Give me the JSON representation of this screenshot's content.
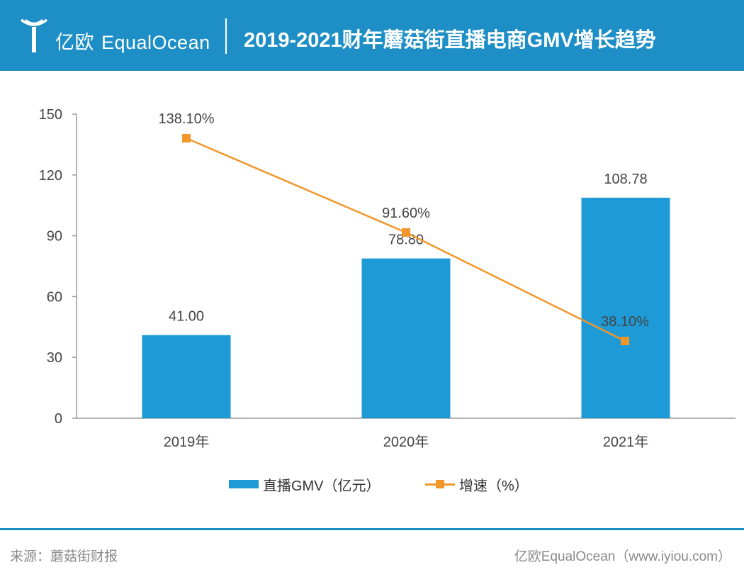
{
  "header": {
    "logo_cn": "亿欧",
    "logo_en": "EqualOcean",
    "title": "2019-2021财年蘑菇街直播电商GMV增长趋势"
  },
  "colors": {
    "header": "#1e8fc6",
    "bar": "#1e9bd7",
    "line": "#f0962a"
  },
  "chart_data": {
    "type": "bar+line",
    "categories": [
      "2019年",
      "2020年",
      "2021年"
    ],
    "series": [
      {
        "name": "直播GMV（亿元）",
        "type": "bar",
        "values": [
          41.0,
          78.8,
          108.78
        ],
        "labels": [
          "41.00",
          "78.80",
          "108.78"
        ]
      },
      {
        "name": "增速（%）",
        "type": "line",
        "values": [
          138.1,
          91.6,
          38.1
        ],
        "labels": [
          "138.10%",
          "91.60%",
          "38.10%"
        ]
      }
    ],
    "y_axis": {
      "min": 0,
      "max": 150,
      "ticks": [
        0,
        30,
        60,
        90,
        120,
        150
      ]
    },
    "legend_position": "bottom"
  },
  "footer": {
    "source": "来源：蘑菇街财报",
    "credit": "亿欧EqualOcean（www.iyiou.com）"
  }
}
